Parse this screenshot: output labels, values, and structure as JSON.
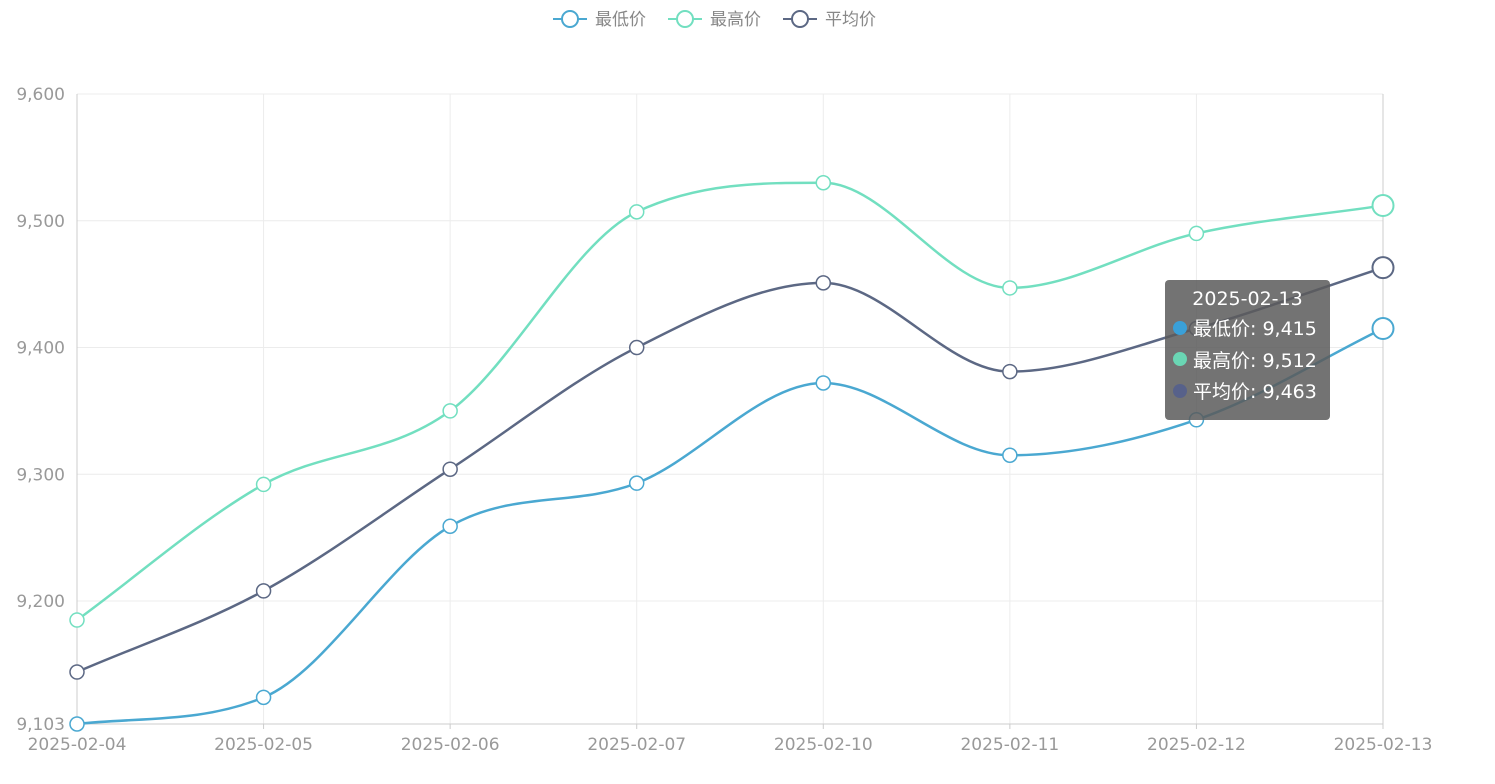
{
  "chart_data": {
    "type": "line",
    "smooth": true,
    "categories": [
      "2025-02-04",
      "2025-02-05",
      "2025-02-06",
      "2025-02-07",
      "2025-02-10",
      "2025-02-11",
      "2025-02-12",
      "2025-02-13"
    ],
    "series": [
      {
        "name": "最低价",
        "color": "#4aa8d1",
        "values": [
          9103,
          9124,
          9259,
          9293,
          9372,
          9315,
          9343,
          9415
        ]
      },
      {
        "name": "最高价",
        "color": "#72dfc0",
        "values": [
          9185,
          9292,
          9350,
          9507,
          9530,
          9447,
          9490,
          9512
        ]
      },
      {
        "name": "平均价",
        "color": "#5c6884",
        "values": [
          9144,
          9208,
          9304,
          9400,
          9451,
          9381,
          9415,
          9463
        ]
      }
    ],
    "yticks": [
      9103,
      9200,
      9300,
      9400,
      9500,
      9600
    ],
    "ylim": [
      9103,
      9600
    ],
    "grid": true,
    "legend_position": "top-center",
    "highlighted_index": 7
  },
  "tooltip": {
    "title": "2025-02-13",
    "rows": [
      {
        "text": "最低价: 9,415",
        "color": "#3aa0d8"
      },
      {
        "text": "最高价: 9,512",
        "color": "#6ad6b4"
      },
      {
        "text": "平均价: 9,463",
        "color": "#57618a"
      }
    ]
  }
}
